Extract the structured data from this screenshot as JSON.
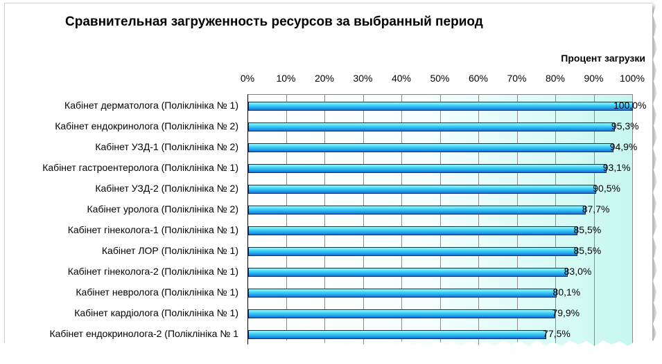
{
  "chart_data": {
    "type": "bar",
    "orientation": "horizontal",
    "title": "Сравнительная загруженность ресурсов за выбранный период",
    "xlabel": "Процент загрузки",
    "ylabel": "",
    "xlim": [
      0,
      100
    ],
    "tick_labels": [
      "0%",
      "10%",
      "20%",
      "30%",
      "40%",
      "50%",
      "60%",
      "70%",
      "80%",
      "90%",
      "100%"
    ],
    "ticks": [
      0,
      10,
      20,
      30,
      40,
      50,
      60,
      70,
      80,
      90,
      100
    ],
    "grid": true,
    "categories": [
      "Кабінет дерматолога (Поліклініка № 1)",
      "Кабінет ендокринолога (Поліклініка № 2)",
      "Кабінет УЗД-1 (Поліклініка № 2)",
      "Кабінет гастроентеролога (Поліклініка № 1)",
      "Кабінет УЗД-2 (Поліклініка № 2)",
      "Кабінет уролога (Поліклініка № 2)",
      "Кабінет гінеколога-1 (Поліклініка № 1)",
      "Кабінет ЛОР (Поліклініка № 1)",
      "Кабінет гінеколога-2 (Поліклініка № 1)",
      "Кабінет невролога (Поліклініка № 1)",
      "Кабінет кардіолога (Поліклініка № 1)",
      "Кабінет ендокринолога-2 (Поліклініка № 1"
    ],
    "values": [
      100.0,
      95.3,
      94.9,
      93.1,
      90.5,
      87.7,
      85.5,
      85.5,
      83.0,
      80.1,
      79.9,
      77.5
    ],
    "value_labels": [
      "100,0%",
      "95,3%",
      "94,9%",
      "93,1%",
      "90,5%",
      "87,7%",
      "85,5%",
      "85,5%",
      "83,0%",
      "80,1%",
      "79,9%",
      "77,5%"
    ],
    "colors": {
      "bar_light": "#9ff8ff",
      "bar_mid": "#3fd2f6",
      "bar_dark": "#1c6fd0",
      "bar_border": "#0b2a63",
      "background_end": "#c6f6f0"
    }
  }
}
